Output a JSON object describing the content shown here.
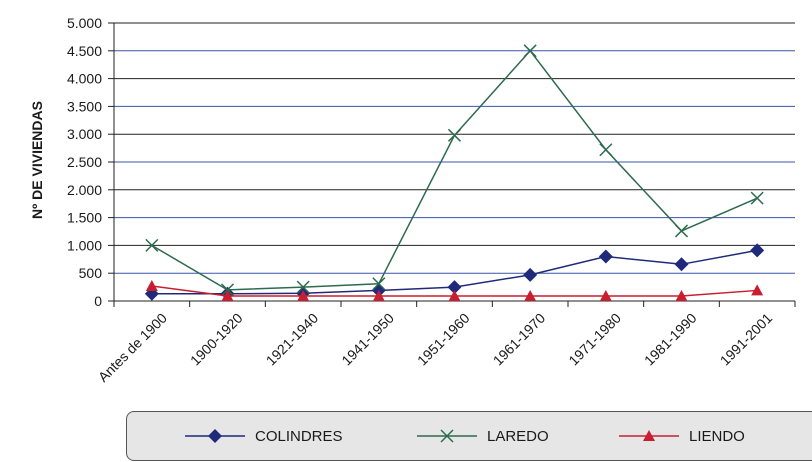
{
  "chart_data": {
    "type": "line",
    "title": "",
    "xlabel": "",
    "ylabel": "Nº DE VIVIENDAS",
    "categories": [
      "Antes de 1900",
      "1900-1920",
      "1921-1940",
      "1941-1950",
      "1951-1960",
      "1961-1970",
      "1971-1980",
      "1981-1990",
      "1991-2001"
    ],
    "ylim": [
      0,
      5000
    ],
    "yticks": [
      {
        "value": 0,
        "label": "0"
      },
      {
        "value": 500,
        "label": "500"
      },
      {
        "value": 1000,
        "label": "1.000"
      },
      {
        "value": 1500,
        "label": "1.500"
      },
      {
        "value": 2000,
        "label": "2.000"
      },
      {
        "value": 2500,
        "label": "2.500"
      },
      {
        "value": 3000,
        "label": "3.000"
      },
      {
        "value": 3500,
        "label": "3.500"
      },
      {
        "value": 4000,
        "label": "4.000"
      },
      {
        "value": 4500,
        "label": "4.500"
      },
      {
        "value": 5000,
        "label": "5.000"
      }
    ],
    "grid": true,
    "legend_position": "bottom",
    "series": [
      {
        "name": "COLINDRES",
        "color": "#1f2a7a",
        "marker": "diamond",
        "values": [
          130,
          130,
          140,
          190,
          250,
          470,
          800,
          660,
          910
        ]
      },
      {
        "name": "LAREDO",
        "color": "#2d6a4f",
        "marker": "x",
        "values": [
          1000,
          200,
          250,
          310,
          2980,
          4500,
          2720,
          1260,
          1850
        ]
      },
      {
        "name": "LIENDO",
        "color": "#c81e2f",
        "marker": "triangle",
        "values": [
          270,
          90,
          90,
          90,
          90,
          90,
          90,
          90,
          190
        ]
      }
    ]
  }
}
